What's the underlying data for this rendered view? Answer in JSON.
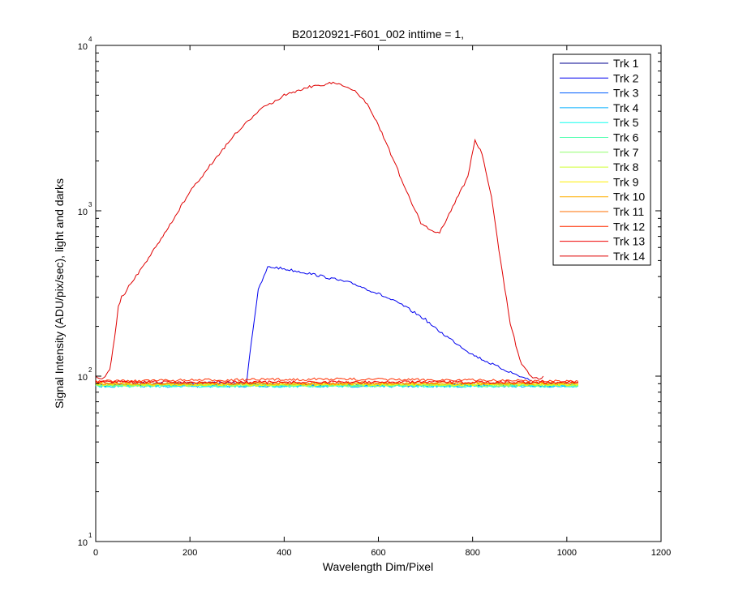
{
  "chart_data": {
    "type": "line",
    "title": "B20120921-F601_002 inttime = 1,",
    "xlabel": "Wavelength Dim/Pixel",
    "ylabel": "Signal Intensity (ADU/pix/sec), light and darks",
    "xlim": [
      0,
      1200
    ],
    "ylim": [
      10,
      10000
    ],
    "yscale": "log",
    "grid": false,
    "legend_position": "top-right",
    "x_ticks": [
      {
        "value": 0,
        "label": "0"
      },
      {
        "value": 200,
        "label": "200"
      },
      {
        "value": 400,
        "label": "400"
      },
      {
        "value": 600,
        "label": "600"
      },
      {
        "value": 800,
        "label": "800"
      },
      {
        "value": 1000,
        "label": "1000"
      },
      {
        "value": 1200,
        "label": "1200"
      }
    ],
    "y_ticks": [
      {
        "value": 10,
        "base": "10",
        "exp": "1"
      },
      {
        "value": 100,
        "base": "10",
        "exp": "2"
      },
      {
        "value": 1000,
        "base": "10",
        "exp": "3"
      },
      {
        "value": 10000,
        "base": "10",
        "exp": "4"
      }
    ],
    "series": [
      {
        "name": "Trk 1",
        "color": "#00008f",
        "x": [
          0,
          1024
        ],
        "y": [
          89,
          89
        ]
      },
      {
        "name": "Trk 2",
        "color": "#0000ef",
        "x": [
          0,
          320,
          330,
          345,
          365,
          380,
          400,
          450,
          500,
          550,
          600,
          650,
          700,
          720,
          750,
          800,
          850,
          900,
          925
        ],
        "y": [
          90,
          91,
          160,
          330,
          455,
          455,
          445,
          420,
          390,
          360,
          315,
          270,
          220,
          195,
          170,
          135,
          115,
          100,
          94
        ]
      },
      {
        "name": "Trk 3",
        "color": "#005fff",
        "x": [
          0,
          1024
        ],
        "y": [
          88,
          88
        ]
      },
      {
        "name": "Trk 4",
        "color": "#00afff",
        "x": [
          0,
          1024
        ],
        "y": [
          87,
          87
        ]
      },
      {
        "name": "Trk 5",
        "color": "#0fffef",
        "x": [
          0,
          1024
        ],
        "y": [
          87,
          87
        ]
      },
      {
        "name": "Trk 6",
        "color": "#4fffaf",
        "x": [
          0,
          1024
        ],
        "y": [
          88,
          88
        ]
      },
      {
        "name": "Trk 7",
        "color": "#8fff6f",
        "x": [
          0,
          1024
        ],
        "y": [
          88,
          88
        ]
      },
      {
        "name": "Trk 8",
        "color": "#cfff2f",
        "x": [
          0,
          1024
        ],
        "y": [
          89,
          89
        ]
      },
      {
        "name": "Trk 9",
        "color": "#ffef00",
        "x": [
          0,
          1024
        ],
        "y": [
          89,
          89
        ]
      },
      {
        "name": "Trk 10",
        "color": "#ffaf00",
        "x": [
          0,
          1024
        ],
        "y": [
          90,
          90
        ]
      },
      {
        "name": "Trk 11",
        "color": "#ff6f00",
        "x": [
          0,
          1024
        ],
        "y": [
          91,
          91
        ]
      },
      {
        "name": "Trk 12",
        "color": "#ff2f00",
        "x": [
          0,
          100,
          300,
          500,
          700,
          900,
          1024
        ],
        "y": [
          93,
          94,
          95,
          96,
          95,
          94,
          93
        ]
      },
      {
        "name": "Trk 13",
        "color": "#ef0000",
        "x": [
          0,
          1024
        ],
        "y": [
          92,
          92
        ]
      },
      {
        "name": "Trk 14",
        "color": "#df0000",
        "x": [
          0,
          10,
          20,
          30,
          40,
          48,
          55,
          62,
          70,
          90,
          120,
          150,
          200,
          250,
          300,
          350,
          400,
          450,
          500,
          520,
          550,
          580,
          600,
          630,
          660,
          690,
          710,
          730,
          750,
          770,
          790,
          805,
          820,
          840,
          860,
          880,
          900,
          920,
          940,
          950
        ],
        "y": [
          100,
          95,
          98,
          110,
          170,
          260,
          305,
          310,
          350,
          420,
          560,
          760,
          1300,
          2000,
          3000,
          4100,
          5000,
          5600,
          5900,
          5850,
          5300,
          4300,
          3300,
          2100,
          1300,
          850,
          760,
          740,
          950,
          1250,
          1600,
          2700,
          2200,
          1200,
          480,
          210,
          125,
          102,
          95,
          100
        ]
      }
    ]
  }
}
